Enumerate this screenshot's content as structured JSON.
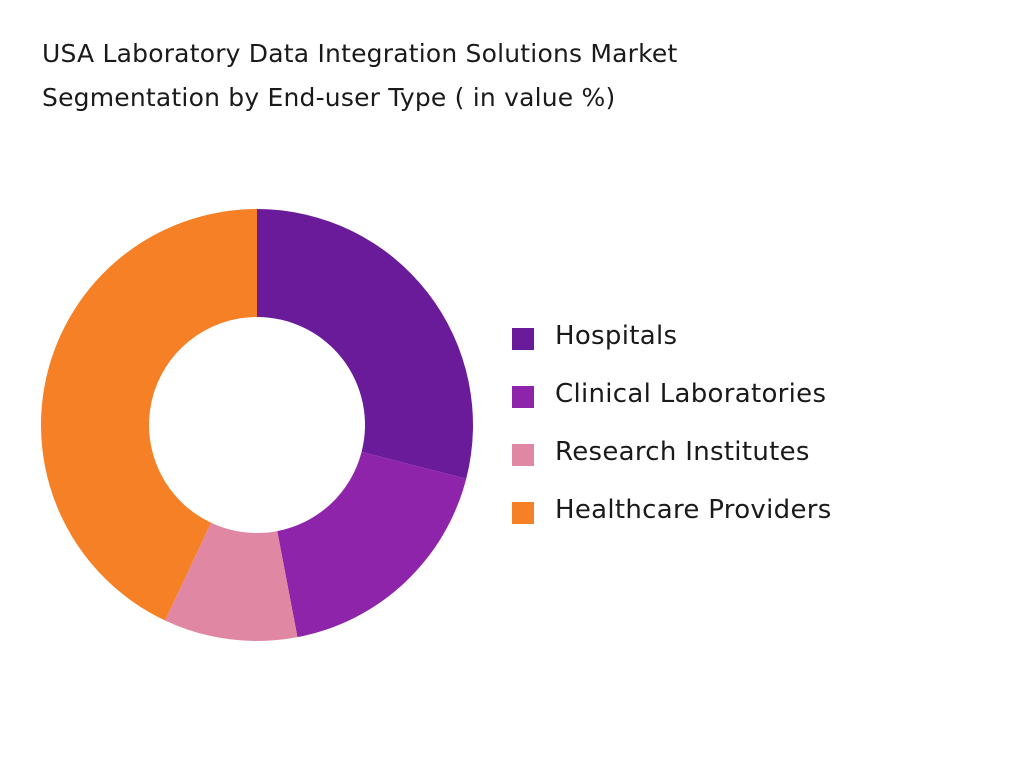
{
  "chart_data": {
    "type": "pie",
    "variant": "donut",
    "title": "USA Laboratory Data Integration Solutions Market Segmentation by End-user Type ( in value %)",
    "title_lines": [
      "USA Laboratory Data Integration Solutions Market",
      "Segmentation by End-user Type ( in value %)"
    ],
    "legend_position": "right",
    "categories": [
      "Hospitals",
      "Clinical Laboratories",
      "Research Institutes",
      "Healthcare Providers"
    ],
    "values": [
      29,
      18,
      10,
      43
    ],
    "colors": [
      "#6a1b9a",
      "#8e24aa",
      "#e088a3",
      "#f58025"
    ]
  }
}
